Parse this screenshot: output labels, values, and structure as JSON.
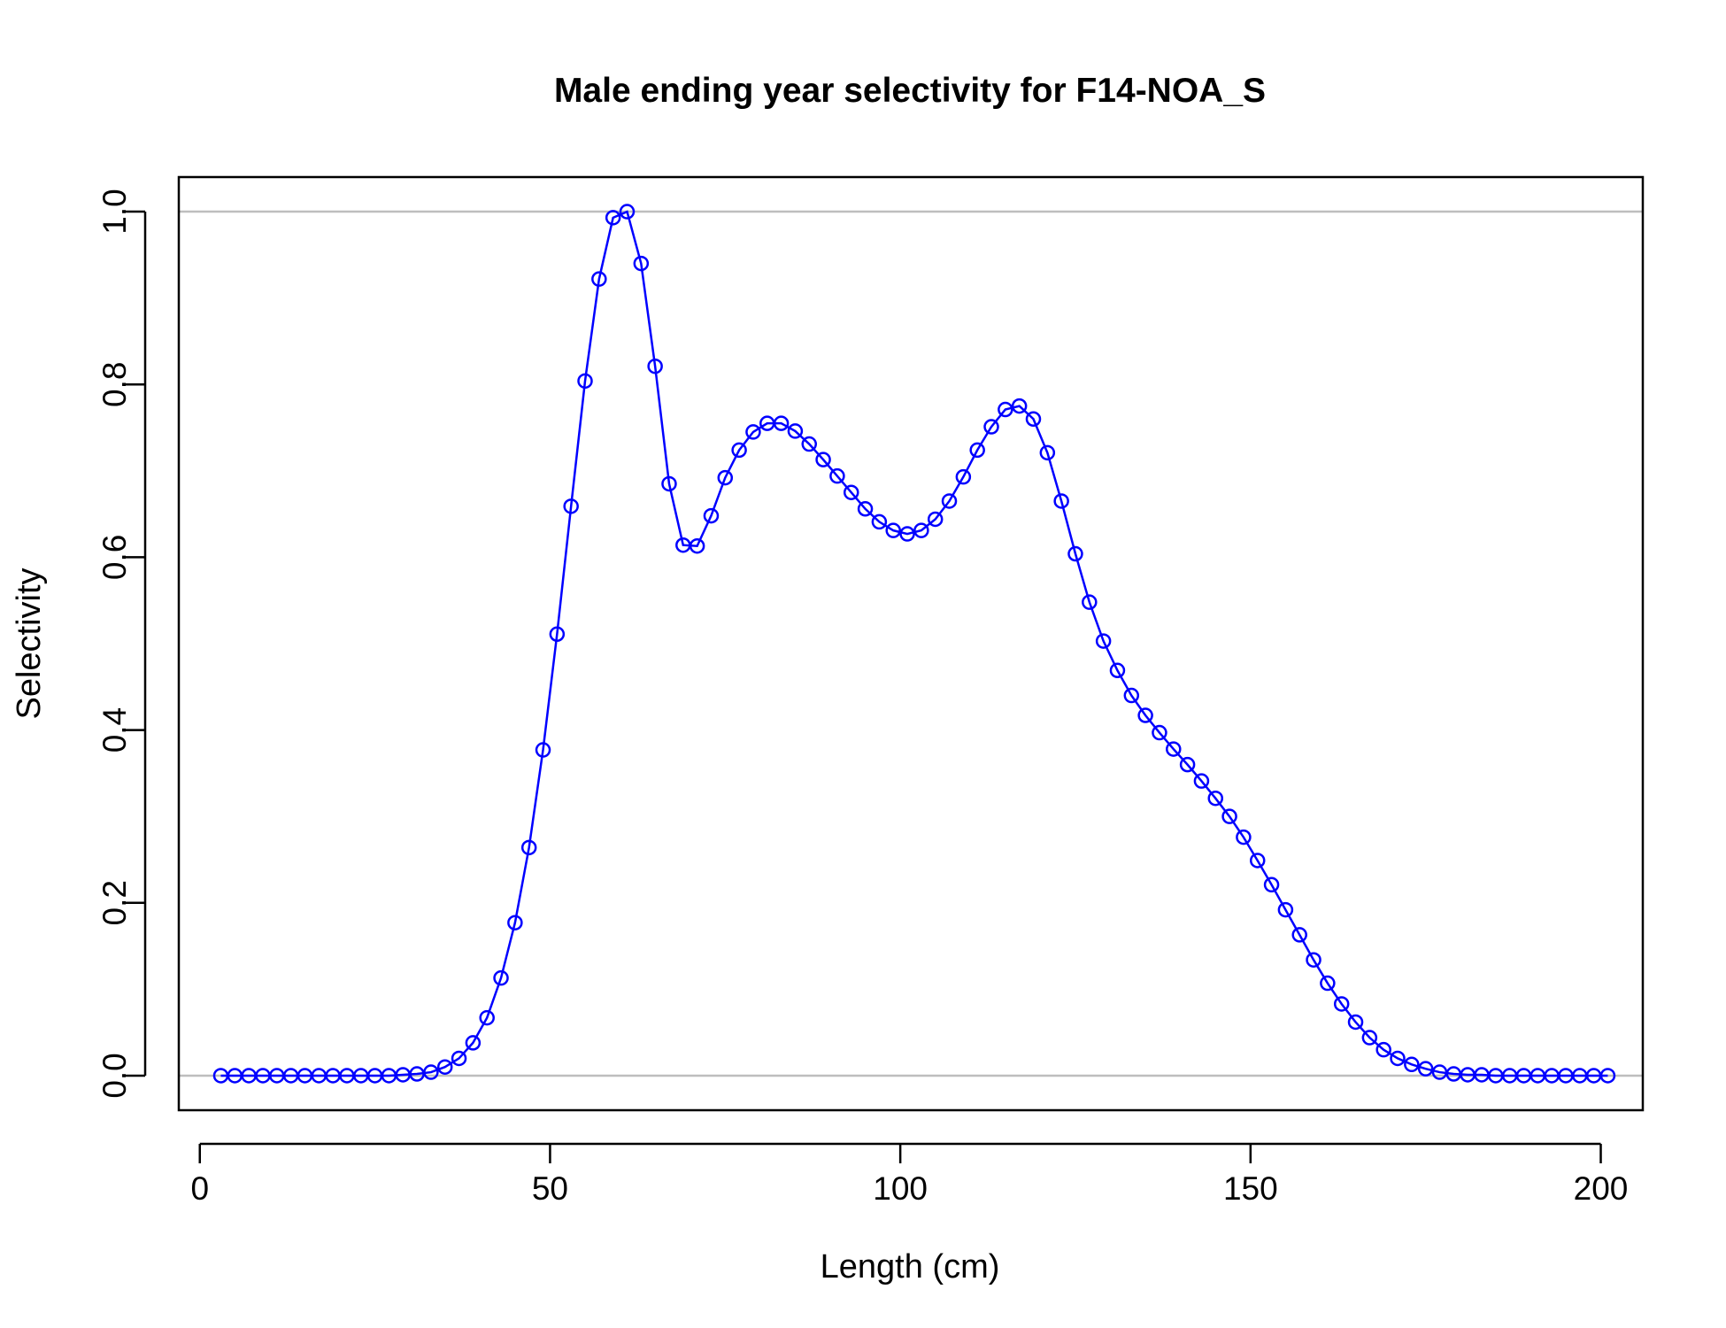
{
  "chart_data": {
    "type": "line",
    "title": "Male ending year selectivity for F14-NOA_S",
    "xlabel": "Length (cm)",
    "ylabel": "Selectivity",
    "xlim": [
      -3,
      206
    ],
    "ylim": [
      -0.04,
      1.04
    ],
    "xticks": [
      0,
      50,
      100,
      150,
      200
    ],
    "xtick_labels": [
      "0",
      "50",
      "100",
      "150",
      "200"
    ],
    "yticks": [
      0,
      0.2,
      0.4,
      0.6,
      0.8,
      1.0
    ],
    "ytick_labels": [
      "0.0",
      "0.2",
      "0.4",
      "0.6",
      "0.8",
      "1.0"
    ],
    "reference_lines": [
      0,
      1
    ],
    "colors": {
      "series": "#0000ff",
      "reference": "#bebebe",
      "axis": "#000000"
    },
    "grid": false,
    "legend": "none",
    "marker": "open-circle",
    "series": [
      {
        "x": [
          3,
          5,
          7,
          9,
          11,
          13,
          15,
          17,
          19,
          21,
          23,
          25,
          27,
          29,
          31,
          33,
          35,
          37,
          39,
          41,
          43,
          45,
          47,
          49,
          51,
          53,
          55,
          57,
          59,
          61,
          63,
          65,
          67,
          69,
          71,
          73,
          75,
          77,
          79,
          81,
          83,
          85,
          87,
          89,
          91,
          93,
          95,
          97,
          99,
          101,
          103,
          105,
          107,
          109,
          111,
          113,
          115,
          117,
          119,
          121,
          123,
          125,
          127,
          129,
          131,
          133,
          135,
          137,
          139,
          141,
          143,
          145,
          147,
          149,
          151,
          153,
          155,
          157,
          159,
          161,
          163,
          165,
          167,
          169,
          171,
          173,
          175,
          177,
          179,
          181,
          183,
          185,
          187,
          189,
          191,
          193,
          195,
          197,
          199,
          201
        ],
        "y": [
          0,
          0,
          0,
          0,
          0,
          0,
          0,
          0,
          0,
          0,
          0,
          0,
          0,
          0.001,
          0.002,
          0.004,
          0.01,
          0.02,
          0.038,
          0.067,
          0.113,
          0.177,
          0.264,
          0.377,
          0.511,
          0.659,
          0.804,
          0.922,
          0.993,
          1.0,
          0.94,
          0.821,
          0.685,
          0.614,
          0.613,
          0.648,
          0.692,
          0.724,
          0.745,
          0.755,
          0.755,
          0.746,
          0.731,
          0.713,
          0.694,
          0.675,
          0.656,
          0.641,
          0.631,
          0.627,
          0.631,
          0.644,
          0.665,
          0.693,
          0.724,
          0.751,
          0.771,
          0.775,
          0.76,
          0.721,
          0.665,
          0.604,
          0.548,
          0.503,
          0.469,
          0.44,
          0.417,
          0.397,
          0.378,
          0.36,
          0.341,
          0.321,
          0.3,
          0.276,
          0.249,
          0.221,
          0.192,
          0.163,
          0.134,
          0.107,
          0.083,
          0.062,
          0.044,
          0.03,
          0.02,
          0.013,
          0.008,
          0.004,
          0.002,
          0.001,
          0.001,
          0,
          0,
          0,
          0,
          0,
          0,
          0,
          0,
          0
        ]
      }
    ]
  }
}
